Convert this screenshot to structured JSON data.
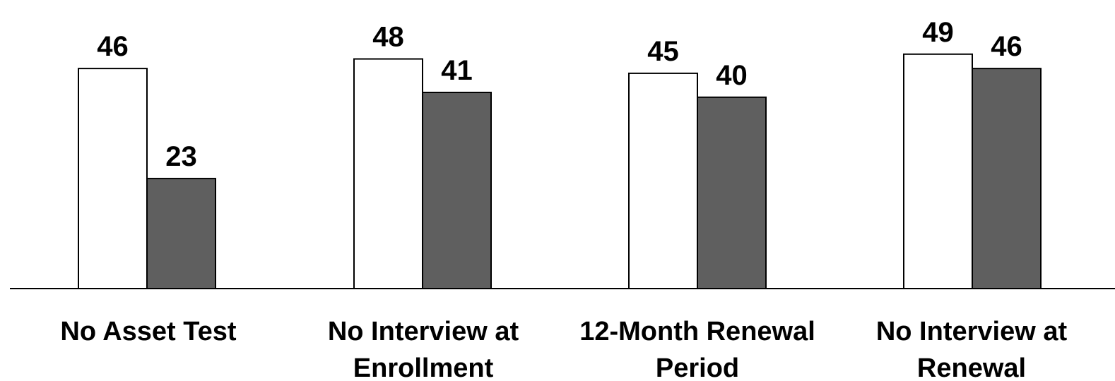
{
  "chart_data": {
    "type": "bar",
    "title": "",
    "xlabel": "",
    "ylabel": "",
    "ylim": [
      0,
      50
    ],
    "grid": false,
    "categories": [
      [
        "No Asset Test"
      ],
      [
        "No Interview at",
        "Enrollment"
      ],
      [
        "12-Month Renewal",
        "Period"
      ],
      [
        "No Interview at",
        "Renewal"
      ]
    ],
    "series": [
      {
        "values": [
          46,
          48,
          45,
          49
        ],
        "fill": "#ffffff",
        "stroke": "#000000"
      },
      {
        "values": [
          23,
          41,
          40,
          46
        ],
        "fill": "#5f5f5f",
        "stroke": "#000000"
      }
    ],
    "colors": {
      "axis": "#000000",
      "text": "#000000"
    }
  }
}
